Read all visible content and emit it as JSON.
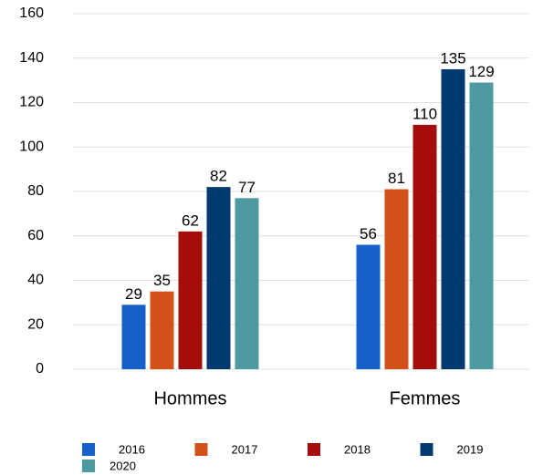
{
  "chart_data": {
    "type": "bar",
    "categories": [
      "Hommes",
      "Femmes"
    ],
    "series": [
      {
        "name": "2016",
        "color": "#1560c8",
        "values": [
          29,
          56
        ]
      },
      {
        "name": "2017",
        "color": "#d4501a",
        "values": [
          35,
          81
        ]
      },
      {
        "name": "2018",
        "color": "#a50d0d",
        "values": [
          62,
          110
        ]
      },
      {
        "name": "2019",
        "color": "#003a70",
        "values": [
          82,
          135
        ]
      },
      {
        "name": "2020",
        "color": "#4e9aa0",
        "values": [
          77,
          129
        ]
      }
    ],
    "ylim": [
      0,
      160
    ],
    "yticks": [
      0,
      20,
      40,
      60,
      80,
      100,
      120,
      140,
      160
    ],
    "grid": true,
    "legend": "bottom"
  }
}
